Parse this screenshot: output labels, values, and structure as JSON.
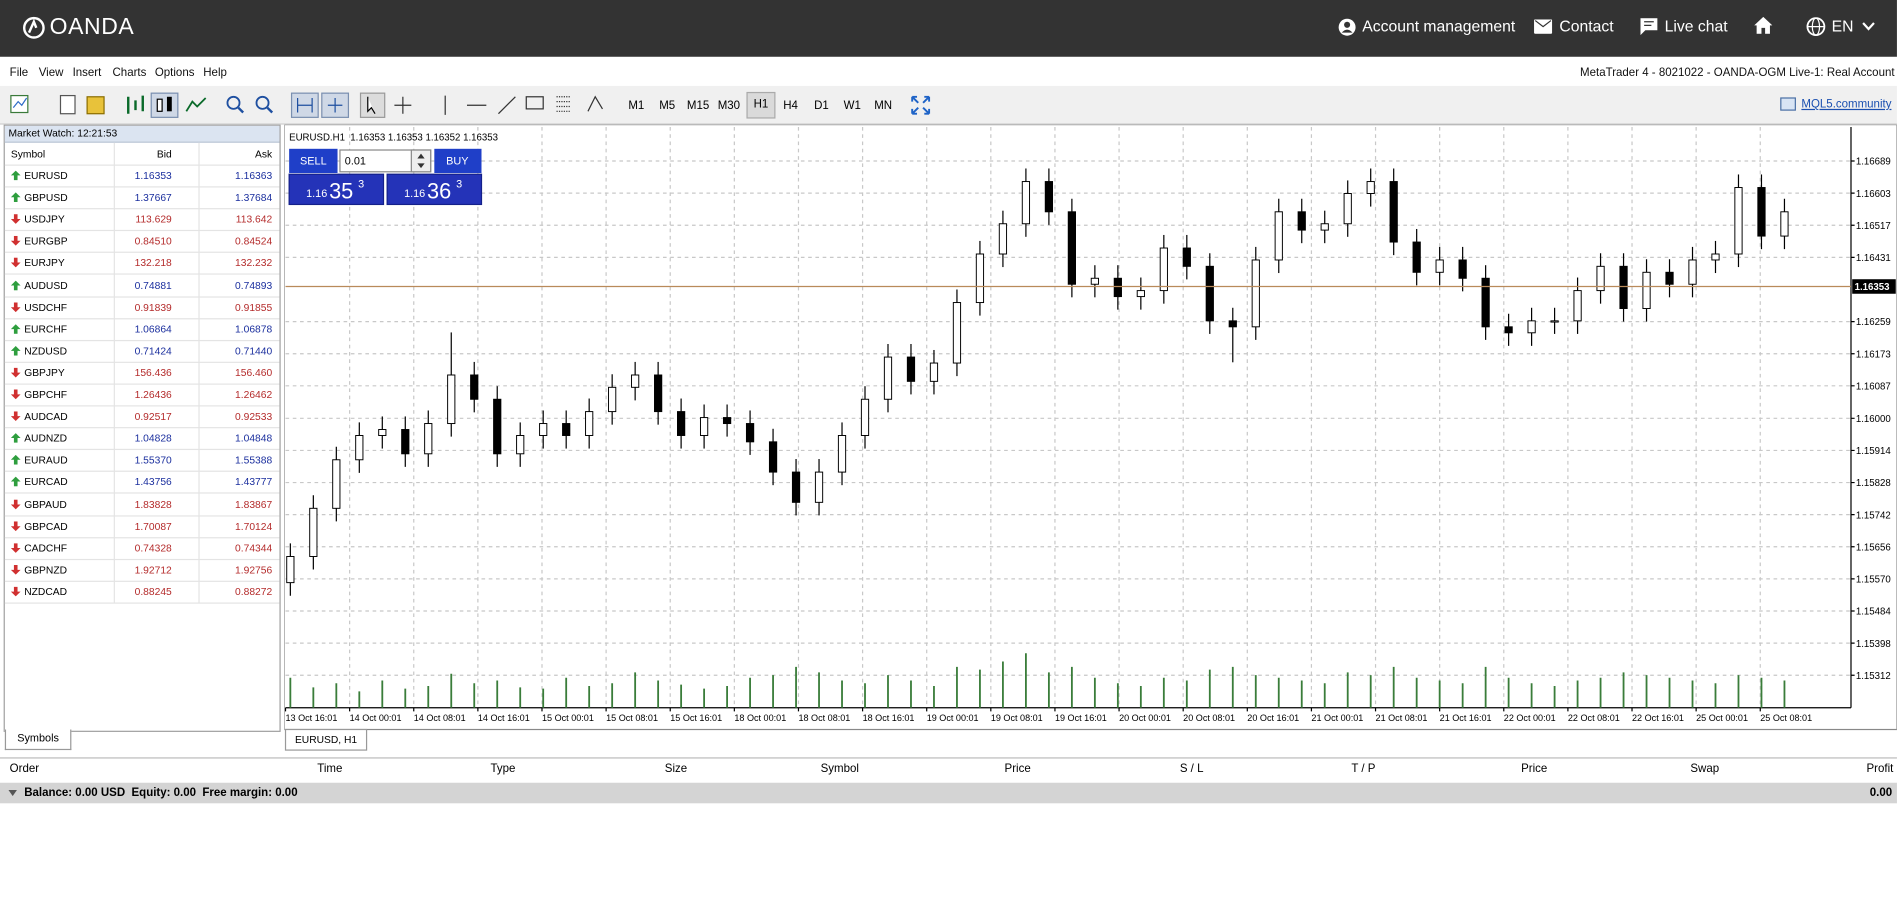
{
  "header": {
    "brand": "OANDA",
    "nav": [
      "Account management",
      "Contact",
      "Live chat"
    ],
    "language": "EN"
  },
  "menu": [
    "File",
    "View",
    "Insert",
    "Charts",
    "Options",
    "Help"
  ],
  "window_title": "MetaTrader 4 - 8021022 - OANDA-OGM Live-1: Real Account",
  "toolbar": {
    "timeframes": [
      "M1",
      "M5",
      "M15",
      "M30",
      "H1",
      "H4",
      "D1",
      "W1",
      "MN"
    ],
    "active": 4,
    "community": "MQL5.community"
  },
  "market_watch": {
    "title": "Market Watch: 12:21:53",
    "columns": [
      "Symbol",
      "Bid",
      "Ask"
    ],
    "tab": "Symbols",
    "rows": [
      {
        "symbol": "EURUSD",
        "bid": "1.16353",
        "ask": "1.16363",
        "direction": "up"
      },
      {
        "symbol": "GBPUSD",
        "bid": "1.37667",
        "ask": "1.37684",
        "direction": "up"
      },
      {
        "symbol": "USDJPY",
        "bid": "113.629",
        "ask": "113.642",
        "direction": "down"
      },
      {
        "symbol": "EURGBP",
        "bid": "0.84510",
        "ask": "0.84524",
        "direction": "down"
      },
      {
        "symbol": "EURJPY",
        "bid": "132.218",
        "ask": "132.232",
        "direction": "down"
      },
      {
        "symbol": "AUDUSD",
        "bid": "0.74881",
        "ask": "0.74893",
        "direction": "up"
      },
      {
        "symbol": "USDCHF",
        "bid": "0.91839",
        "ask": "0.91855",
        "direction": "down"
      },
      {
        "symbol": "EURCHF",
        "bid": "1.06864",
        "ask": "1.06878",
        "direction": "up"
      },
      {
        "symbol": "NZDUSD",
        "bid": "0.71424",
        "ask": "0.71440",
        "direction": "up"
      },
      {
        "symbol": "GBPJPY",
        "bid": "156.436",
        "ask": "156.460",
        "direction": "down"
      },
      {
        "symbol": "GBPCHF",
        "bid": "1.26436",
        "ask": "1.26462",
        "direction": "down"
      },
      {
        "symbol": "AUDCAD",
        "bid": "0.92517",
        "ask": "0.92533",
        "direction": "down"
      },
      {
        "symbol": "AUDNZD",
        "bid": "1.04828",
        "ask": "1.04848",
        "direction": "up"
      },
      {
        "symbol": "EURAUD",
        "bid": "1.55370",
        "ask": "1.55388",
        "direction": "up"
      },
      {
        "symbol": "EURCAD",
        "bid": "1.43756",
        "ask": "1.43777",
        "direction": "up"
      },
      {
        "symbol": "GBPAUD",
        "bid": "1.83828",
        "ask": "1.83867",
        "direction": "down"
      },
      {
        "symbol": "GBPCAD",
        "bid": "1.70087",
        "ask": "1.70124",
        "direction": "down"
      },
      {
        "symbol": "CADCHF",
        "bid": "0.74328",
        "ask": "0.74344",
        "direction": "down"
      },
      {
        "symbol": "GBPNZD",
        "bid": "1.92712",
        "ask": "1.92756",
        "direction": "down"
      },
      {
        "symbol": "NZDCAD",
        "bid": "0.88245",
        "ask": "0.88272",
        "direction": "down"
      }
    ]
  },
  "chart": {
    "type": "candlestick",
    "info": "EURUSD.H1  1.16353 1.16353 1.16352 1.16353",
    "tab": "EURUSD, H1",
    "sell": "SELL",
    "buy": "BUY",
    "lot": "0.01",
    "sell_price": [
      "1.16",
      "35",
      "3"
    ],
    "buy_price": [
      "1.16",
      "36",
      "3"
    ],
    "ylim": [
      1.15225,
      1.1678
    ],
    "yticks": [
      1.16689,
      1.16603,
      1.16517,
      1.16431,
      1.16259,
      1.16173,
      1.16087,
      {
        "value": 1.16,
        "label": "1.16000"
      },
      1.15914,
      1.15828,
      1.15742,
      1.15656,
      {
        "value": 1.1557,
        "label": "1.15570"
      },
      1.15484,
      1.15398,
      1.15312
    ],
    "current_price": 1.16353,
    "grid": true,
    "time_labels": [
      "13 Oct 16:01",
      "14 Oct 00:01",
      "14 Oct 08:01",
      "14 Oct 16:01",
      "15 Oct 00:01",
      "15 Oct 08:01",
      "15 Oct 16:01",
      "18 Oct 00:01",
      "18 Oct 08:01",
      "18 Oct 16:01",
      "19 Oct 00:01",
      "19 Oct 08:01",
      "19 Oct 16:01",
      "20 Oct 00:01",
      "20 Oct 08:01",
      "20 Oct 16:01",
      "21 Oct 00:01",
      "21 Oct 08:01",
      "21 Oct 16:01",
      "22 Oct 00:01",
      "22 Oct 08:01",
      "22 Oct 16:01",
      "25 Oct 00:01",
      "25 Oct 08:01"
    ],
    "candles": [
      [
        1.1556,
        1.15665,
        1.15525,
        1.1563
      ],
      [
        1.1563,
        1.15794,
        1.15595,
        1.15759
      ],
      [
        1.15759,
        1.15924,
        1.15724,
        1.15889
      ],
      [
        1.15889,
        1.15989,
        1.15854,
        1.15954
      ],
      [
        1.15954,
        1.16005,
        1.15919,
        1.1597
      ],
      [
        1.1597,
        1.16005,
        1.1587,
        1.15905
      ],
      [
        1.15905,
        1.16021,
        1.1587,
        1.15986
      ],
      [
        1.15986,
        1.1623,
        1.15951,
        1.16116
      ],
      [
        1.16116,
        1.16151,
        1.16016,
        1.16051
      ],
      [
        1.16051,
        1.16086,
        1.1587,
        1.15905
      ],
      [
        1.15905,
        1.15989,
        1.1587,
        1.15954
      ],
      [
        1.15954,
        1.16021,
        1.15919,
        1.15986
      ],
      [
        1.15986,
        1.16021,
        1.15919,
        1.15954
      ],
      [
        1.15954,
        1.16053,
        1.15919,
        1.16018
      ],
      [
        1.16018,
        1.16118,
        1.15983,
        1.16083
      ],
      [
        1.16083,
        1.16151,
        1.16048,
        1.16116
      ],
      [
        1.16116,
        1.16151,
        1.15983,
        1.16018
      ],
      [
        1.16018,
        1.16053,
        1.15919,
        1.15954
      ],
      [
        1.15954,
        1.16037,
        1.15919,
        1.16002
      ],
      [
        1.16002,
        1.16037,
        1.15951,
        1.15986
      ],
      [
        1.15986,
        1.16021,
        1.15902,
        1.15937
      ],
      [
        1.15937,
        1.15972,
        1.15821,
        1.15856
      ],
      [
        1.15856,
        1.15891,
        1.1574,
        1.15775
      ],
      [
        1.15775,
        1.15891,
        1.1574,
        1.15856
      ],
      [
        1.15856,
        1.15989,
        1.15821,
        1.15954
      ],
      [
        1.15954,
        1.16086,
        1.15919,
        1.16051
      ],
      [
        1.16051,
        1.16199,
        1.16016,
        1.16164
      ],
      [
        1.16164,
        1.16199,
        1.16064,
        1.16099
      ],
      [
        1.16099,
        1.16183,
        1.16064,
        1.16148
      ],
      [
        1.16148,
        1.16345,
        1.16113,
        1.1631
      ],
      [
        1.1631,
        1.16475,
        1.16275,
        1.1644
      ],
      [
        1.1644,
        1.16556,
        1.16405,
        1.16521
      ],
      [
        1.16521,
        1.16669,
        1.16486,
        1.16634
      ],
      [
        1.16634,
        1.16669,
        1.16518,
        1.16553
      ],
      [
        1.16553,
        1.16588,
        1.16324,
        1.16359
      ],
      [
        1.16359,
        1.1641,
        1.16324,
        1.16375
      ],
      [
        1.16375,
        1.1641,
        1.16291,
        1.16326
      ],
      [
        1.16326,
        1.16377,
        1.16291,
        1.16342
      ],
      [
        1.16342,
        1.16491,
        1.16307,
        1.16456
      ],
      [
        1.16456,
        1.16491,
        1.16372,
        1.16407
      ],
      [
        1.16407,
        1.16442,
        1.16226,
        1.16261
      ],
      [
        1.16261,
        1.16296,
        1.1615,
        1.16245
      ],
      [
        1.16245,
        1.16459,
        1.1621,
        1.16424
      ],
      [
        1.16424,
        1.16588,
        1.16389,
        1.16553
      ],
      [
        1.16553,
        1.16588,
        1.16469,
        1.16504
      ],
      [
        1.16504,
        1.16556,
        1.16469,
        1.16521
      ],
      [
        1.16521,
        1.16637,
        1.16486,
        1.16602
      ],
      [
        1.16602,
        1.16669,
        1.16567,
        1.16634
      ],
      [
        1.16634,
        1.16669,
        1.16437,
        1.16472
      ],
      [
        1.16472,
        1.16507,
        1.16356,
        1.16391
      ],
      [
        1.16391,
        1.16459,
        1.16356,
        1.16424
      ],
      [
        1.16424,
        1.16459,
        1.1634,
        1.16375
      ],
      [
        1.16375,
        1.1641,
        1.1621,
        1.16245
      ],
      [
        1.16245,
        1.1628,
        1.16194,
        1.16229
      ],
      [
        1.16229,
        1.16296,
        1.16194,
        1.16261
      ],
      [
        1.16261,
        1.16296,
        1.16226,
        1.16261
      ],
      [
        1.16261,
        1.16377,
        1.16226,
        1.16342
      ],
      [
        1.16342,
        1.16442,
        1.16307,
        1.16407
      ],
      [
        1.16407,
        1.16442,
        1.16259,
        1.16294
      ],
      [
        1.16294,
        1.16426,
        1.16259,
        1.16391
      ],
      [
        1.16391,
        1.16426,
        1.16324,
        1.16359
      ],
      [
        1.16359,
        1.16459,
        1.16324,
        1.16424
      ],
      [
        1.16424,
        1.16475,
        1.16389,
        1.1644
      ],
      [
        1.1644,
        1.16653,
        1.16405,
        1.16618
      ],
      [
        1.16618,
        1.16653,
        1.16453,
        1.16488
      ],
      [
        1.16488,
        1.16588,
        1.16453,
        1.16553
      ]
    ],
    "volumes": [
      22,
      15,
      18,
      12,
      20,
      14,
      16,
      25,
      18,
      20,
      15,
      14,
      22,
      16,
      18,
      26,
      20,
      17,
      14,
      16,
      22,
      24,
      30,
      26,
      20,
      18,
      24,
      20,
      16,
      30,
      28,
      34,
      40,
      26,
      30,
      22,
      18,
      16,
      22,
      20,
      28,
      30,
      24,
      22,
      20,
      18,
      26,
      24,
      30,
      22,
      20,
      18,
      30,
      22,
      18,
      16,
      20,
      22,
      26,
      24,
      22,
      20,
      18,
      24,
      22,
      20
    ],
    "up_color": "#ffffff",
    "down_color": "#000000",
    "volume_color": "#3a7d3a",
    "price_line_color": "#b98a5a"
  },
  "terminal": {
    "columns": [
      "Order",
      "Time",
      "Type",
      "Size",
      "Symbol",
      "Price",
      "S / L",
      "T / P",
      "Price",
      "Swap",
      "Profit"
    ],
    "balance": "Balance: 0.00 USD  Equity: 0.00  Free margin: 0.00",
    "profit": "0.00"
  }
}
